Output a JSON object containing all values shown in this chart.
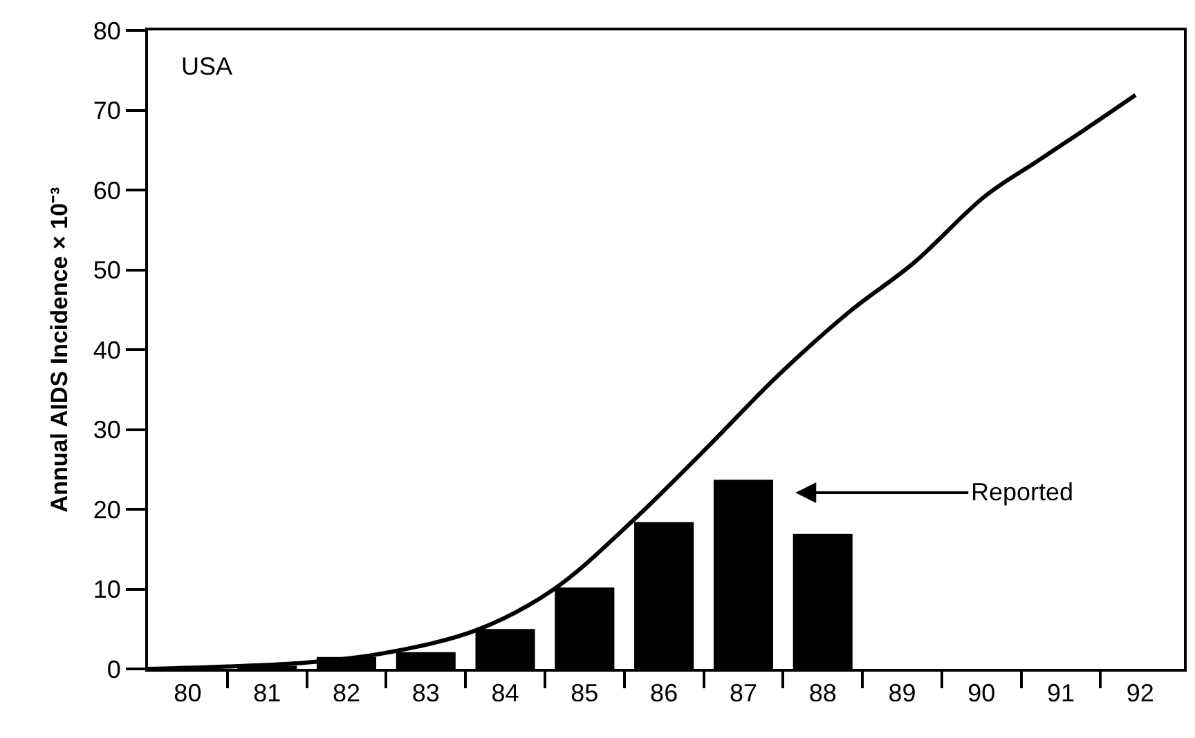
{
  "chart_data": {
    "type": "bar",
    "ylabel": "Annual AIDS Incidence × 10⁻³",
    "annotations": [
      "USA",
      "Reported"
    ],
    "x": [
      81,
      82,
      83,
      84,
      85,
      86,
      87,
      88
    ],
    "series": [
      {
        "color": "#000000",
        "values": [
          0.4,
          1.5,
          2.1,
          5.0,
          10.2,
          18.4,
          23.7,
          16.9
        ]
      },
      {
        "type": "line",
        "color": "#000000",
        "x": [
          79.5,
          80.5,
          81.5,
          82.49,
          83.65,
          84.6,
          85.6,
          86.55,
          87.43,
          88.33,
          89.15,
          90.04,
          90.7,
          91.29,
          91.94
        ],
        "values": [
          0,
          0.3,
          0.8,
          2.0,
          4.9,
          9.9,
          18.5,
          27.8,
          36.7,
          44.7,
          50.9,
          59.2,
          63.6,
          67.5,
          71.9
        ]
      }
    ],
    "xlim": [
      79.5,
      92.55
    ],
    "xticks": [
      80,
      81,
      82,
      83,
      84,
      85,
      86,
      87,
      88,
      89,
      90,
      91,
      92
    ],
    "ylim": [
      0,
      80
    ],
    "yticks": [
      0,
      10,
      20,
      30,
      40,
      50,
      60,
      70,
      80
    ],
    "marker": "none",
    "line_style": "solid"
  }
}
